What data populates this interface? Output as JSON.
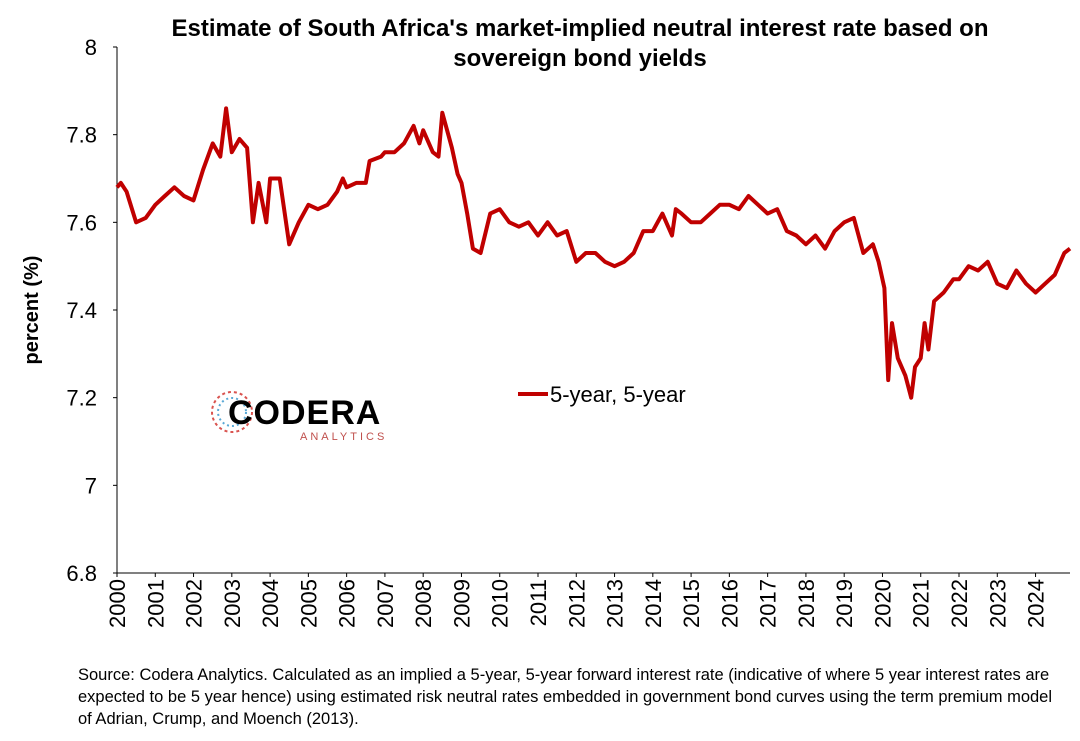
{
  "chart_data": {
    "type": "line",
    "title": "Estimate of South Africa's market-implied neutral interest rate based on sovereign bond yields",
    "y_label": "percent (%)",
    "source": "Source: Codera Analytics. Calculated as an implied a 5-year, 5-year forward interest rate (indicative of where 5 year interest rates are expected to be 5 year hence) using estimated risk neutral rates embedded in government bond curves using the term premium model of Adrian, Crump, and Moench (2013).",
    "logo": {
      "name": "CODERA",
      "sub": "ANALYTICS"
    },
    "legend_position": "center",
    "x": [
      2000.0,
      2000.1,
      2000.25,
      2000.5,
      2000.75,
      2001.0,
      2001.25,
      2001.5,
      2001.75,
      2002.0,
      2002.25,
      2002.5,
      2002.7,
      2002.85,
      2003.0,
      2003.2,
      2003.4,
      2003.55,
      2003.7,
      2003.9,
      2004.0,
      2004.25,
      2004.5,
      2004.75,
      2005.0,
      2005.25,
      2005.5,
      2005.75,
      2005.9,
      2006.0,
      2006.25,
      2006.5,
      2006.6,
      2006.9,
      2007.0,
      2007.25,
      2007.5,
      2007.75,
      2007.9,
      2008.0,
      2008.25,
      2008.4,
      2008.5,
      2008.75,
      2008.9,
      2009.0,
      2009.15,
      2009.3,
      2009.5,
      2009.75,
      2010.0,
      2010.25,
      2010.5,
      2010.75,
      2011.0,
      2011.25,
      2011.5,
      2011.75,
      2012.0,
      2012.25,
      2012.5,
      2012.75,
      2013.0,
      2013.25,
      2013.5,
      2013.75,
      2014.0,
      2014.25,
      2014.5,
      2014.6,
      2014.75,
      2015.0,
      2015.25,
      2015.5,
      2015.75,
      2016.0,
      2016.25,
      2016.5,
      2016.75,
      2017.0,
      2017.25,
      2017.5,
      2017.75,
      2018.0,
      2018.25,
      2018.5,
      2018.75,
      2019.0,
      2019.25,
      2019.5,
      2019.75,
      2019.9,
      2020.05,
      2020.15,
      2020.25,
      2020.4,
      2020.6,
      2020.75,
      2020.85,
      2021.0,
      2021.1,
      2021.2,
      2021.35,
      2021.6,
      2021.85,
      2022.0,
      2022.25,
      2022.5,
      2022.75,
      2023.0,
      2023.25,
      2023.5,
      2023.75,
      2024.0,
      2024.25,
      2024.5,
      2024.75,
      2024.9
    ],
    "series": [
      {
        "name": "5-year, 5-year",
        "color": "#c00000",
        "values": [
          7.68,
          7.69,
          7.67,
          7.6,
          7.61,
          7.64,
          7.66,
          7.68,
          7.66,
          7.65,
          7.72,
          7.78,
          7.75,
          7.86,
          7.76,
          7.79,
          7.77,
          7.6,
          7.69,
          7.6,
          7.7,
          7.7,
          7.55,
          7.6,
          7.64,
          7.63,
          7.64,
          7.67,
          7.7,
          7.68,
          7.69,
          7.69,
          7.74,
          7.75,
          7.76,
          7.76,
          7.78,
          7.82,
          7.78,
          7.81,
          7.76,
          7.75,
          7.85,
          7.77,
          7.71,
          7.69,
          7.62,
          7.54,
          7.53,
          7.62,
          7.63,
          7.6,
          7.59,
          7.6,
          7.57,
          7.6,
          7.57,
          7.58,
          7.51,
          7.53,
          7.53,
          7.51,
          7.5,
          7.51,
          7.53,
          7.58,
          7.58,
          7.62,
          7.57,
          7.63,
          7.62,
          7.6,
          7.6,
          7.62,
          7.64,
          7.64,
          7.63,
          7.66,
          7.64,
          7.62,
          7.63,
          7.58,
          7.57,
          7.55,
          7.57,
          7.54,
          7.58,
          7.6,
          7.61,
          7.53,
          7.55,
          7.51,
          7.45,
          7.24,
          7.37,
          7.29,
          7.25,
          7.2,
          7.27,
          7.29,
          7.37,
          7.31,
          7.42,
          7.44,
          7.47,
          7.47,
          7.5,
          7.49,
          7.51,
          7.46,
          7.45,
          7.49,
          7.46,
          7.44,
          7.46,
          7.48,
          7.53,
          7.54
        ]
      }
    ],
    "xlim": [
      2000,
      2024.9
    ],
    "xticks": [
      2000,
      2001,
      2002,
      2003,
      2004,
      2005,
      2006,
      2007,
      2008,
      2009,
      2010,
      2011,
      2012,
      2013,
      2014,
      2015,
      2016,
      2017,
      2018,
      2019,
      2020,
      2021,
      2022,
      2023,
      2024
    ],
    "ylim": [
      6.8,
      8
    ],
    "yticks": [
      6.8,
      7,
      7.2,
      7.4,
      7.6,
      7.8,
      8
    ],
    "grid": false
  }
}
